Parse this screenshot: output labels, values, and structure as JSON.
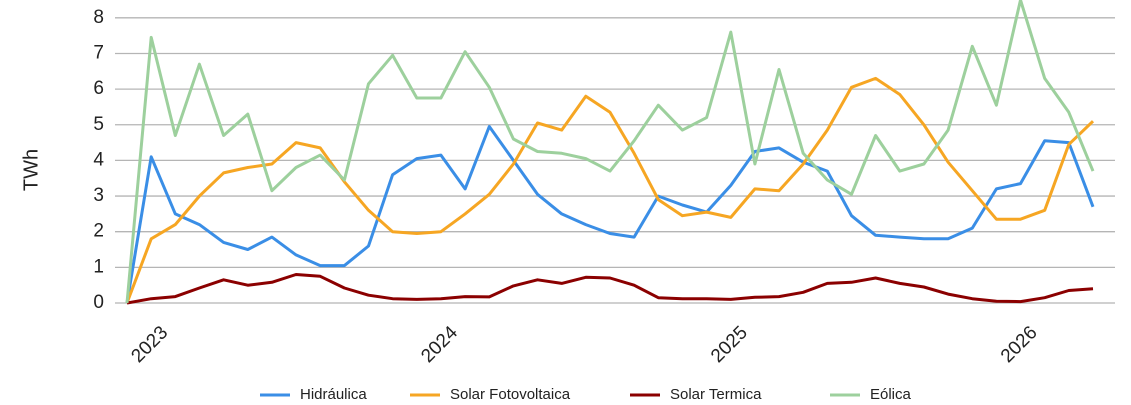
{
  "chart_data": {
    "type": "line",
    "y_label": "TWh",
    "categories": [
      null,
      "2023",
      null,
      null,
      null,
      null,
      null,
      null,
      null,
      null,
      null,
      null,
      null,
      "2024",
      null,
      null,
      null,
      null,
      null,
      null,
      null,
      null,
      null,
      null,
      null,
      "2025",
      null,
      null,
      null,
      null,
      null,
      null,
      null,
      null,
      null,
      null,
      null,
      "2026",
      null,
      null,
      null
    ],
    "series": [
      {
        "name": "Hidráulica",
        "color": "#3a8ee6",
        "values": [
          0,
          4.1,
          2.5,
          2.2,
          1.7,
          1.5,
          1.85,
          1.35,
          1.05,
          1.05,
          1.6,
          3.6,
          4.05,
          4.15,
          3.2,
          4.95,
          4.0,
          3.05,
          2.5,
          2.2,
          1.95,
          1.85,
          3.0,
          2.75,
          2.55,
          3.3,
          4.25,
          4.35,
          3.95,
          3.7,
          2.45,
          1.9,
          1.85,
          1.8,
          1.8,
          2.1,
          3.2,
          3.35,
          4.55,
          4.5,
          2.7
        ]
      },
      {
        "name": "Solar Fotovoltaica",
        "color": "#f6a623",
        "values": [
          0,
          1.8,
          2.2,
          3.0,
          3.65,
          3.8,
          3.9,
          4.5,
          4.35,
          3.4,
          2.6,
          2.0,
          1.95,
          2.0,
          2.5,
          3.05,
          3.9,
          5.05,
          4.85,
          5.8,
          5.35,
          4.2,
          2.9,
          2.45,
          2.55,
          2.4,
          3.2,
          3.15,
          3.9,
          4.85,
          6.05,
          6.3,
          5.85,
          5.0,
          3.95,
          3.15,
          2.35,
          2.35,
          2.6,
          4.45,
          5.1
        ]
      },
      {
        "name": "Solar Termica",
        "color": "#8b0000",
        "values": [
          0,
          0.12,
          0.18,
          0.42,
          0.65,
          0.5,
          0.58,
          0.8,
          0.75,
          0.42,
          0.22,
          0.12,
          0.1,
          0.12,
          0.18,
          0.17,
          0.48,
          0.65,
          0.55,
          0.72,
          0.7,
          0.5,
          0.15,
          0.12,
          0.12,
          0.1,
          0.16,
          0.18,
          0.3,
          0.55,
          0.58,
          0.7,
          0.55,
          0.45,
          0.25,
          0.12,
          0.05,
          0.04,
          0.15,
          0.35,
          0.4
        ]
      },
      {
        "name": "Eólica",
        "color": "#9dd09d",
        "values": [
          0,
          7.45,
          4.7,
          6.7,
          4.7,
          5.3,
          3.15,
          3.8,
          4.15,
          3.45,
          6.15,
          6.95,
          5.75,
          5.75,
          7.05,
          6.05,
          4.6,
          4.25,
          4.2,
          4.05,
          3.7,
          4.55,
          5.55,
          4.85,
          5.2,
          7.6,
          3.9,
          6.55,
          4.2,
          3.45,
          3.05,
          4.7,
          3.7,
          3.9,
          4.85,
          7.2,
          5.55,
          8.5,
          6.3,
          5.35,
          3.7
        ]
      }
    ],
    "ylim": [
      0,
      8.5
    ],
    "yticks": [
      0,
      1,
      2,
      3,
      4,
      5,
      6,
      7,
      8
    ],
    "grid": true
  }
}
